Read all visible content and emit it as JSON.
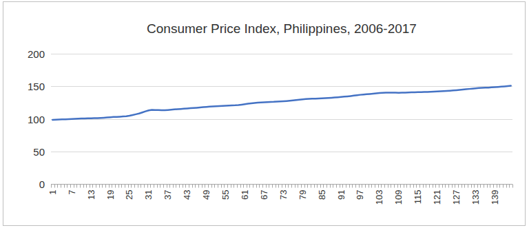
{
  "chart_data": {
    "type": "line",
    "title": "Consumer Price Index, Philippines, 2006-2017",
    "categories": [
      "1",
      null,
      null,
      null,
      null,
      null,
      "7",
      null,
      null,
      null,
      null,
      null,
      "13",
      null,
      null,
      null,
      null,
      null,
      "19",
      null,
      null,
      null,
      null,
      null,
      "25",
      null,
      null,
      null,
      null,
      null,
      "31",
      null,
      null,
      null,
      null,
      null,
      "37",
      null,
      null,
      null,
      null,
      null,
      "43",
      null,
      null,
      null,
      null,
      null,
      "49",
      null,
      null,
      null,
      null,
      null,
      "55",
      null,
      null,
      null,
      null,
      null,
      "61",
      null,
      null,
      null,
      null,
      null,
      "67",
      null,
      null,
      null,
      null,
      null,
      "73",
      null,
      null,
      null,
      null,
      null,
      "79",
      null,
      null,
      null,
      null,
      null,
      "85",
      null,
      null,
      null,
      null,
      null,
      "91",
      null,
      null,
      null,
      null,
      null,
      "97",
      null,
      null,
      null,
      null,
      null,
      "103",
      null,
      null,
      null,
      null,
      null,
      "109",
      null,
      null,
      null,
      null,
      null,
      "115",
      null,
      null,
      null,
      null,
      null,
      "121",
      null,
      null,
      null,
      null,
      null,
      "127",
      null,
      null,
      null,
      null,
      null,
      "133",
      null,
      null,
      null,
      null,
      null,
      "139",
      null,
      null,
      null,
      null,
      null
    ],
    "values": [
      98.5,
      98.7,
      98.9,
      99.1,
      99.3,
      99.6,
      99.8,
      100.0,
      100.2,
      100.4,
      100.5,
      100.7,
      100.9,
      101.0,
      101.1,
      101.3,
      101.6,
      102.0,
      102.5,
      102.8,
      103.0,
      103.3,
      103.6,
      104.0,
      104.8,
      105.9,
      107.0,
      108.2,
      109.8,
      111.5,
      113.0,
      113.8,
      113.6,
      113.4,
      113.3,
      113.3,
      113.6,
      114.0,
      114.5,
      114.9,
      115.2,
      115.6,
      116.0,
      116.3,
      116.6,
      117.0,
      117.4,
      117.9,
      118.3,
      118.7,
      119.0,
      119.3,
      119.6,
      119.8,
      120.1,
      120.4,
      120.6,
      120.8,
      121.2,
      121.8,
      122.5,
      123.2,
      123.8,
      124.3,
      124.8,
      125.2,
      125.5,
      125.7,
      125.9,
      126.1,
      126.4,
      126.7,
      127.0,
      127.3,
      127.7,
      128.2,
      128.8,
      129.4,
      130.0,
      130.4,
      130.7,
      130.9,
      131.0,
      131.2,
      131.4,
      131.7,
      132.0,
      132.4,
      132.8,
      133.2,
      133.6,
      134.0,
      134.5,
      135.0,
      135.6,
      136.3,
      136.9,
      137.4,
      137.8,
      138.2,
      138.6,
      139.1,
      139.6,
      140.0,
      140.2,
      140.3,
      140.3,
      140.2,
      140.0,
      140.1,
      140.3,
      140.5,
      140.7,
      140.8,
      140.9,
      141.0,
      141.2,
      141.4,
      141.6,
      141.8,
      142.0,
      142.3,
      142.6,
      142.9,
      143.2,
      143.6,
      144.0,
      144.4,
      144.9,
      145.4,
      145.9,
      146.4,
      146.9,
      147.3,
      147.6,
      147.8,
      148.0,
      148.3,
      148.6,
      149.0,
      149.4,
      149.8,
      150.3,
      150.8
    ],
    "color": "#4472c4",
    "ylim": [
      0,
      200
    ],
    "yticks": [
      0,
      50,
      100,
      150,
      200
    ],
    "grid": true
  }
}
